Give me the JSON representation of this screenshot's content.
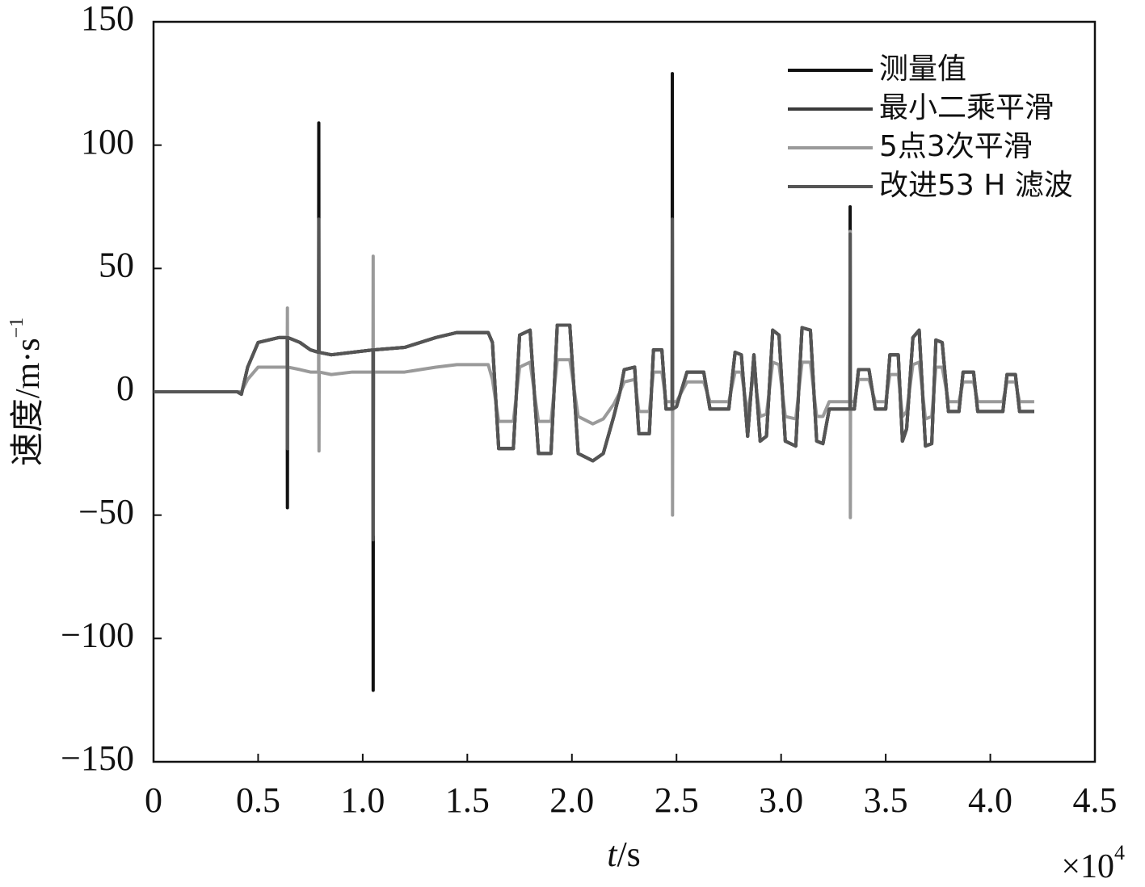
{
  "chart_data": {
    "type": "line",
    "ylabel": "速度/m·s",
    "ylabel_exponent": "−1",
    "xlabel_var": "t",
    "xlabel_unit": "/s",
    "x_scale_label": "×10",
    "x_scale_exponent": "4",
    "xlim": [
      0,
      4.5
    ],
    "xticks": [
      0,
      0.5,
      {
        "value": 1,
        "label": "1.0"
      },
      1.5,
      {
        "value": 2,
        "label": "2.0"
      },
      2.5,
      {
        "value": 3,
        "label": "3.0"
      },
      3.5,
      {
        "value": 4,
        "label": "4.0"
      },
      4.5
    ],
    "ylim": [
      -150,
      150
    ],
    "yticks": [
      {
        "value": -150,
        "label": "−150"
      },
      {
        "value": -100,
        "label": "−100"
      },
      {
        "value": -50,
        "label": "−50"
      },
      0,
      50,
      100,
      150
    ],
    "legend": "top-right",
    "x": [
      0,
      0.4,
      0.42,
      0.45,
      0.5,
      0.6,
      0.639,
      0.64,
      0.641,
      0.642,
      0.7,
      0.75,
      0.789,
      0.79,
      0.791,
      0.792,
      0.85,
      0.95,
      1.049,
      1.05,
      1.051,
      1.052,
      1.2,
      1.35,
      1.45,
      1.6,
      1.62,
      1.65,
      1.72,
      1.75,
      1.8,
      1.84,
      1.9,
      1.93,
      1.99,
      2.03,
      2.1,
      2.15,
      2.2,
      2.23,
      2.25,
      2.3,
      2.32,
      2.37,
      2.39,
      2.43,
      2.45,
      2.479,
      2.48,
      2.481,
      2.482,
      2.5,
      2.55,
      2.63,
      2.66,
      2.75,
      2.78,
      2.81,
      2.84,
      2.87,
      2.9,
      2.93,
      2.96,
      2.99,
      3.02,
      3.07,
      3.1,
      3.14,
      3.17,
      3.2,
      3.23,
      3.329,
      3.33,
      3.331,
      3.332,
      3.35,
      3.37,
      3.42,
      3.45,
      3.5,
      3.52,
      3.56,
      3.58,
      3.6,
      3.63,
      3.66,
      3.69,
      3.72,
      3.74,
      3.77,
      3.8,
      3.85,
      3.87,
      3.92,
      3.94,
      4.06,
      4.08,
      4.12,
      4.14,
      4.21
    ],
    "series": [
      {
        "name": "测量值",
        "color": "#111111",
        "values": [
          0,
          0,
          -1,
          10,
          20,
          22,
          22,
          -47,
          22,
          22,
          20,
          17,
          16,
          109,
          16,
          16,
          15,
          16,
          17,
          -121,
          17,
          17,
          18,
          22,
          24,
          24,
          20,
          -23,
          -23,
          23,
          25,
          -25,
          -25,
          27,
          27,
          -25,
          -28,
          -25,
          -10,
          0,
          9,
          10,
          -17,
          -17,
          17,
          17,
          -7,
          -7,
          129,
          -7,
          -7,
          -6,
          8,
          8,
          -7,
          -7,
          16,
          15,
          -18,
          15,
          -20,
          -18,
          25,
          23,
          -20,
          -22,
          26,
          25,
          -20,
          -21,
          -7,
          -7,
          75,
          -7,
          -7,
          -7,
          9,
          9,
          -7,
          -7,
          15,
          15,
          -20,
          -15,
          22,
          25,
          -22,
          -21,
          21,
          20,
          -8,
          -8,
          8,
          8,
          -8,
          -8,
          7,
          7,
          -8,
          -8
        ]
      },
      {
        "name": "最小二乘平滑",
        "color": "#3a3a3a",
        "values": [
          0,
          0,
          -1,
          10,
          20,
          22,
          22,
          22,
          22,
          22,
          20,
          17,
          16,
          16,
          16,
          16,
          15,
          16,
          17,
          17,
          17,
          17,
          18,
          22,
          24,
          24,
          20,
          -23,
          -23,
          23,
          25,
          -25,
          -25,
          27,
          27,
          -25,
          -28,
          -25,
          -10,
          0,
          9,
          10,
          -17,
          -17,
          17,
          17,
          -7,
          -7,
          -7,
          -7,
          -7,
          -6,
          8,
          8,
          -7,
          -7,
          16,
          15,
          -18,
          15,
          -20,
          -18,
          25,
          23,
          -20,
          -22,
          26,
          25,
          -20,
          -21,
          -7,
          -7,
          -7,
          -7,
          -7,
          -7,
          9,
          9,
          -7,
          -7,
          15,
          15,
          -20,
          -15,
          22,
          25,
          -22,
          -21,
          21,
          20,
          -8,
          -8,
          8,
          8,
          -8,
          -8,
          7,
          7,
          -8,
          -8
        ]
      },
      {
        "name": "5点3次平滑",
        "color": "#9a9a9a",
        "values": [
          0,
          0,
          0,
          5,
          10,
          10,
          10,
          34,
          -23,
          10,
          9,
          8,
          8,
          53,
          -24,
          8,
          7,
          8,
          8,
          55,
          -58,
          8,
          8,
          10,
          11,
          11,
          5,
          -12,
          -12,
          10,
          12,
          -12,
          -12,
          13,
          13,
          -10,
          -13,
          -11,
          -5,
          0,
          4,
          5,
          -8,
          -8,
          8,
          8,
          -4,
          -4,
          62,
          -50,
          -4,
          -4,
          4,
          4,
          -4,
          -4,
          8,
          8,
          -9,
          8,
          -10,
          -9,
          12,
          11,
          -10,
          -11,
          12,
          12,
          -10,
          -10,
          -4,
          -4,
          65,
          -51,
          -4,
          -4,
          5,
          5,
          -4,
          -4,
          7,
          7,
          -10,
          -8,
          11,
          12,
          -11,
          -10,
          10,
          10,
          -4,
          -4,
          4,
          4,
          -4,
          -4,
          4,
          4,
          -4,
          -4
        ]
      },
      {
        "name": "改进53 H 滤波",
        "color": "#555555",
        "values": [
          0,
          0,
          -1,
          10,
          20,
          22,
          22,
          -23,
          22,
          22,
          20,
          17,
          16,
          70,
          16,
          16,
          15,
          16,
          17,
          -60,
          17,
          17,
          18,
          22,
          24,
          24,
          20,
          -23,
          -23,
          23,
          25,
          -25,
          -25,
          27,
          27,
          -25,
          -28,
          -25,
          -10,
          0,
          9,
          10,
          -17,
          -17,
          17,
          17,
          -7,
          -7,
          70,
          -7,
          -7,
          -6,
          8,
          8,
          -7,
          -7,
          16,
          15,
          -18,
          15,
          -20,
          -18,
          25,
          23,
          -20,
          -22,
          26,
          25,
          -20,
          -21,
          -7,
          -7,
          64,
          -7,
          -7,
          -7,
          9,
          9,
          -7,
          -7,
          15,
          15,
          -20,
          -15,
          22,
          25,
          -22,
          -21,
          21,
          20,
          -8,
          -8,
          8,
          8,
          -8,
          -8,
          7,
          7,
          -8,
          -8
        ]
      }
    ]
  }
}
